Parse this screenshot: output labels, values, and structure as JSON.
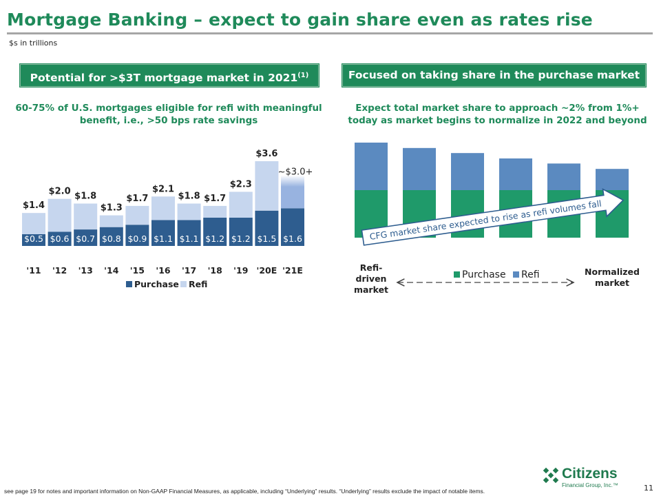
{
  "page": {
    "title": "Mortgage Banking – expect to gain share even as rates rise",
    "units": "$s in trillions",
    "footnote": "see page 19 for notes and important information on  Non-GAAP Financial Measures, as applicable, including “Underlying” results. “Underlying” results exclude the impact of notable items.",
    "page_number": "11",
    "logo": {
      "name": "Citizens",
      "subtitle": "Financial Group, Inc.™"
    }
  },
  "left_panel": {
    "header_text": "Potential for >$3T mortgage market in 2021",
    "header_sup": "(1)",
    "subhead": "60-75% of U.S. mortgages eligible for refi with meaningful benefit, i.e., >50 bps rate savings"
  },
  "right_panel": {
    "header_text": "Focused on taking share in the purchase market",
    "subhead": "Expect total market share to approach ~2% from 1%+ today as market begins to normalize in 2022 and beyond"
  },
  "chart_data": [
    {
      "type": "bar",
      "stacked": true,
      "categories": [
        "'11",
        "'12",
        "'13",
        "'14",
        "'15",
        "'16",
        "'17",
        "'18",
        "'19",
        "'20E",
        "'21E"
      ],
      "series": [
        {
          "name": "Purchase",
          "color": "#2e5d8f",
          "values": [
            0.5,
            0.6,
            0.7,
            0.8,
            0.9,
            1.1,
            1.1,
            1.2,
            1.2,
            1.5,
            1.6
          ],
          "labels": [
            "$0.5",
            "$0.6",
            "$0.7",
            "$0.8",
            "$0.9",
            "$1.1",
            "$1.1",
            "$1.2",
            "$1.2",
            "$1.5",
            "$1.6"
          ]
        },
        {
          "name": "Refi",
          "color": "#c6d6ee",
          "values": [
            0.9,
            1.4,
            1.1,
            0.5,
            0.8,
            1.0,
            0.7,
            0.5,
            1.1,
            2.1,
            1.4
          ]
        }
      ],
      "totals": [
        1.4,
        2.0,
        1.8,
        1.3,
        1.7,
        2.1,
        1.8,
        1.7,
        2.3,
        3.6,
        3.0
      ],
      "total_labels": [
        "$1.4",
        "$2.0",
        "$1.8",
        "$1.3",
        "$1.7",
        "$2.1",
        "$1.8",
        "$1.7",
        "$2.3",
        "$3.6",
        "~$3.0+"
      ],
      "projected_refi_color": "#98b3e0",
      "legend": [
        "Purchase",
        "Refi"
      ],
      "legend_position": "bottom",
      "ylim": [
        0,
        3.6
      ],
      "grid": false
    },
    {
      "type": "bar",
      "stacked": true,
      "illustrative": true,
      "categories": [
        "",
        "",
        "",
        "",
        "",
        ""
      ],
      "series": [
        {
          "name": "Purchase",
          "color": "#1f9a6a",
          "values": [
            1.5,
            1.5,
            1.5,
            1.5,
            1.5,
            1.5
          ]
        },
        {
          "name": "Refi",
          "color": "#5b8ac0",
          "values": [
            1.5,
            1.33,
            1.17,
            1.0,
            0.84,
            0.67
          ]
        }
      ],
      "legend": [
        "Purchase",
        "Refi"
      ],
      "legend_position": "bottom",
      "left_end_label": "Refi-driven market",
      "right_end_label": "Normalized market",
      "arrow_annotation": "CFG market share expected to rise as refi volumes fall",
      "grid": false
    }
  ]
}
